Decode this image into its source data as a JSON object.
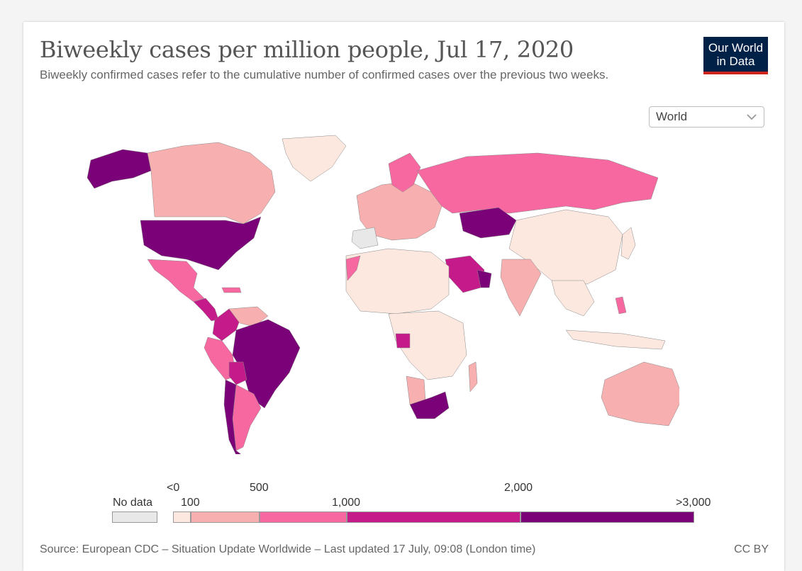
{
  "header": {
    "title": "Biweekly cases per million people, Jul 17, 2020",
    "subtitle": "Biweekly confirmed cases refer to the cumulative number of confirmed cases over the previous two weeks."
  },
  "logo": {
    "line1": "Our World",
    "line2": "in Data"
  },
  "region_select": {
    "selected": "World"
  },
  "legend": {
    "no_data_label": "No data",
    "bins": [
      {
        "label_top": "<0",
        "label_bottom": "100",
        "color": "#fde8e0"
      },
      {
        "label_bottom": "",
        "label_top": "500",
        "color": "#f8afaf"
      },
      {
        "label_bottom": "1,000",
        "color": "#f768a1"
      },
      {
        "label_top": "2,000",
        "color": "#c51b8a"
      },
      {
        "label_bottom": ">3,000",
        "color": "#7a0177"
      }
    ]
  },
  "footer": {
    "source": "Source: European CDC – Situation Update Worldwide – Last updated 17 July, 09:08 (London time)",
    "license": "CC BY"
  },
  "colors": {
    "lightest": "#fde8e0",
    "light": "#f8afaf",
    "mid": "#f768a1",
    "dark": "#c51b8a",
    "darkest": "#7a0177",
    "nodata": "#e8e8e8"
  }
}
